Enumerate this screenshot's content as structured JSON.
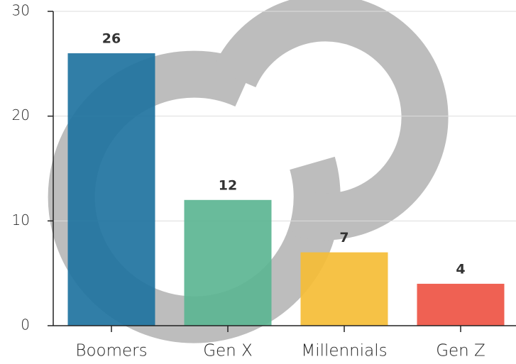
{
  "chart_data": {
    "type": "bar",
    "categories": [
      "Boomers",
      "Gen X",
      "Millennials",
      "Gen Z"
    ],
    "values": [
      26,
      12,
      7,
      4
    ],
    "colors": [
      "#1f73a0",
      "#5cb592",
      "#f5bd36",
      "#ee5444"
    ],
    "ylim": [
      0,
      30
    ],
    "yticks": [
      0,
      10,
      20,
      30
    ],
    "grid": true
  }
}
